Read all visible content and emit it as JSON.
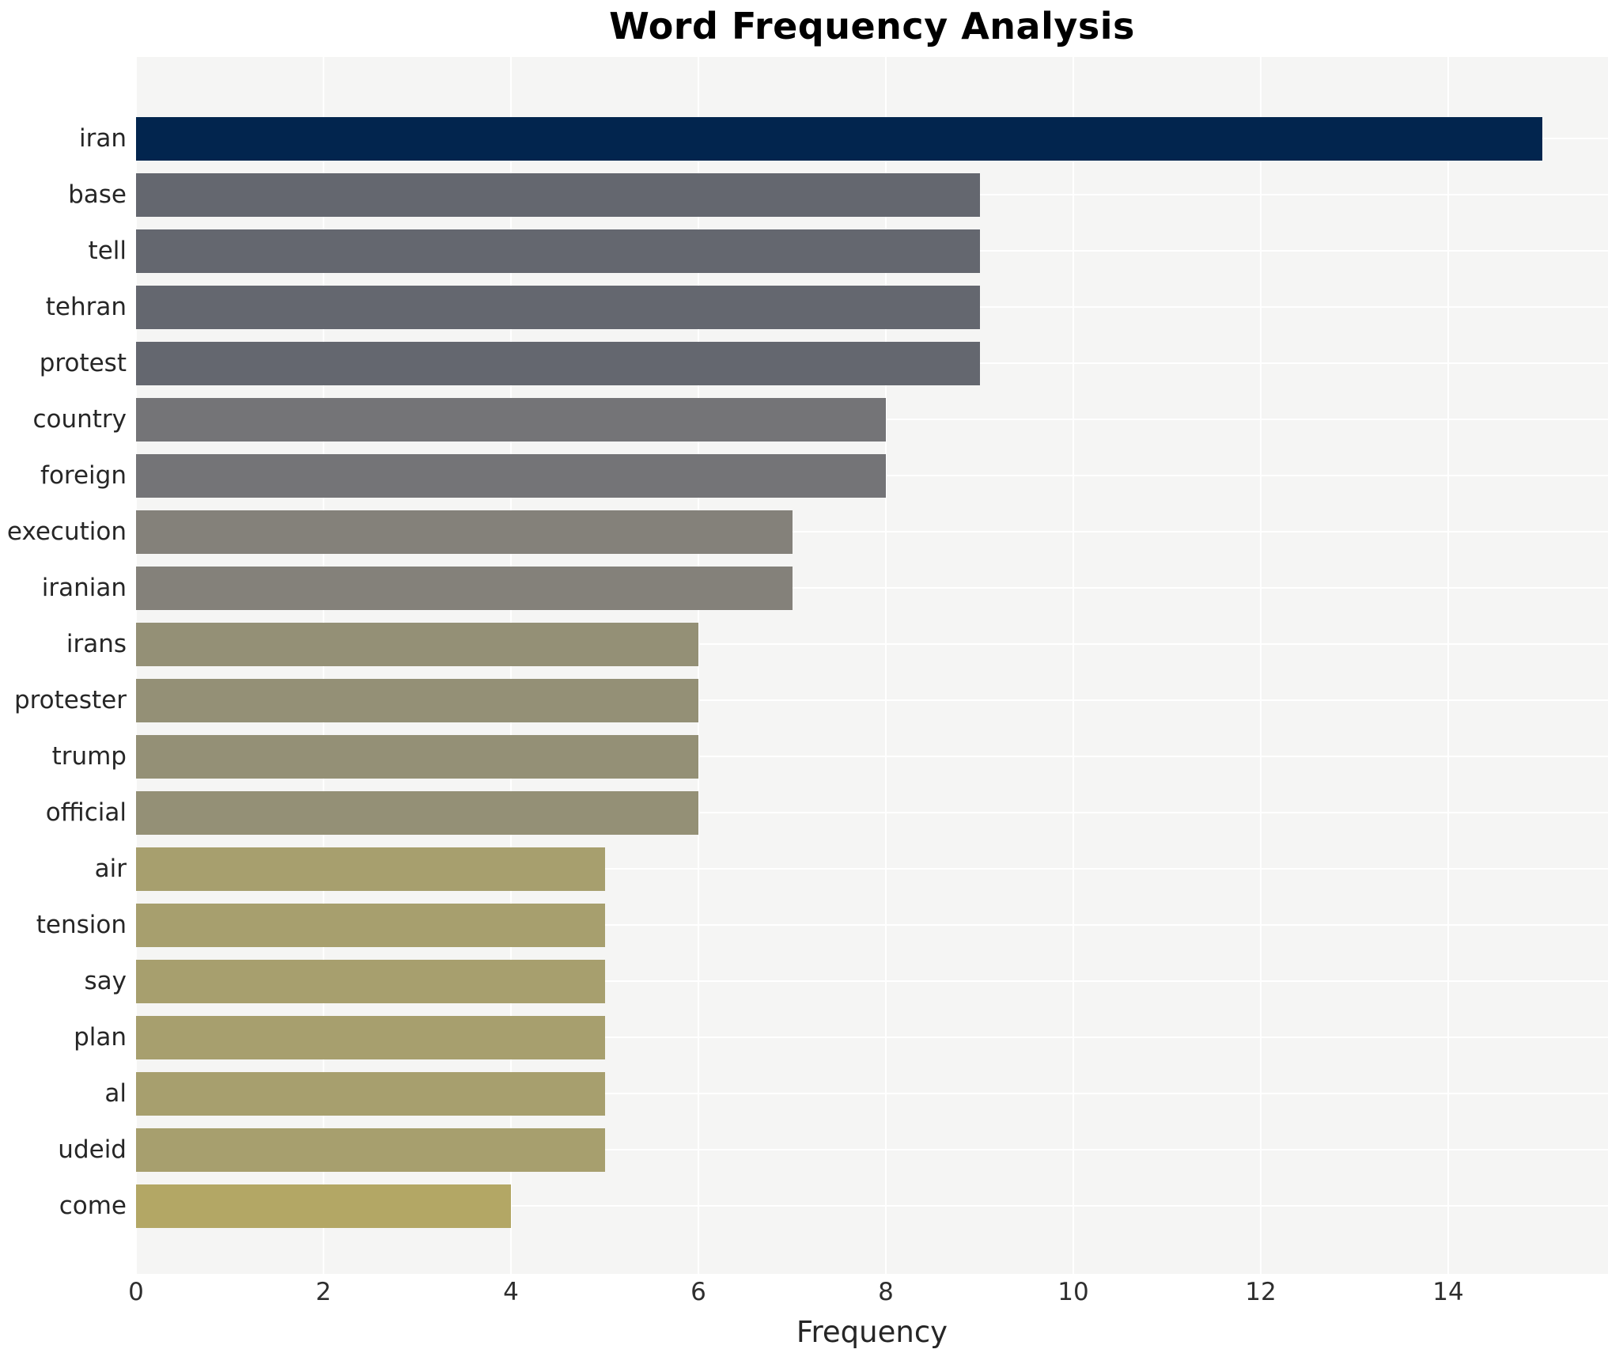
{
  "title": "Word Frequency Analysis",
  "chart_data": {
    "type": "bar",
    "orientation": "horizontal",
    "title": "Word Frequency Analysis",
    "xlabel": "Frequency",
    "ylabel": "",
    "categories": [
      "iran",
      "base",
      "tell",
      "tehran",
      "protest",
      "country",
      "foreign",
      "execution",
      "iranian",
      "irans",
      "protester",
      "trump",
      "official",
      "air",
      "tension",
      "say",
      "plan",
      "al",
      "udeid",
      "come"
    ],
    "values": [
      15,
      9,
      9,
      9,
      9,
      8,
      8,
      7,
      7,
      6,
      6,
      6,
      6,
      5,
      5,
      5,
      5,
      5,
      5,
      4
    ],
    "bar_colors": [
      "#02254e",
      "#64676f",
      "#64676f",
      "#64676f",
      "#64676f",
      "#747477",
      "#747477",
      "#84817a",
      "#84817a",
      "#949076",
      "#949076",
      "#949076",
      "#949076",
      "#a79f6e",
      "#a79f6e",
      "#a79f6e",
      "#a79f6e",
      "#a79f6e",
      "#a79f6e",
      "#b3a765"
    ],
    "xticks": [
      0,
      2,
      4,
      6,
      8,
      10,
      12,
      14
    ],
    "xlim": [
      0,
      15.7
    ],
    "grid": true,
    "legend": "none",
    "plot_background": "#f5f5f4",
    "grid_color": "#ffffff",
    "label_color": "#262626",
    "tick_color": "#2e2e2e"
  }
}
